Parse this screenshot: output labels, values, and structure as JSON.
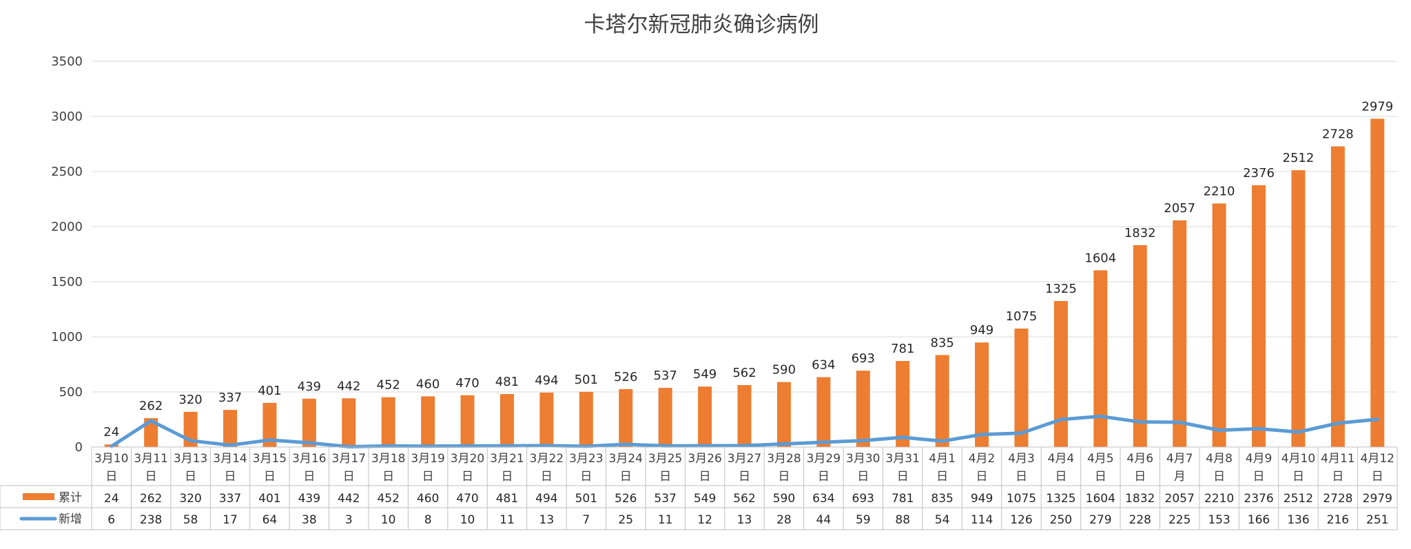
{
  "chart_data": {
    "type": "bar",
    "title": "卡塔尔新冠肺炎确诊病例",
    "categories": [
      [
        "3月10",
        "日"
      ],
      [
        "3月11",
        "日"
      ],
      [
        "3月13",
        "日"
      ],
      [
        "3月14",
        "日"
      ],
      [
        "3月15",
        "日"
      ],
      [
        "3月16",
        "日"
      ],
      [
        "3月17",
        "日"
      ],
      [
        "3月18",
        "日"
      ],
      [
        "3月19",
        "日"
      ],
      [
        "3月20",
        "日"
      ],
      [
        "3月21",
        "日"
      ],
      [
        "3月22",
        "日"
      ],
      [
        "3月23",
        "日"
      ],
      [
        "3月24",
        "日"
      ],
      [
        "3月25",
        "日"
      ],
      [
        "3月26",
        "日"
      ],
      [
        "3月27",
        "日"
      ],
      [
        "3月28",
        "日"
      ],
      [
        "3月29",
        "日"
      ],
      [
        "3月30",
        "日"
      ],
      [
        "3月31",
        "日"
      ],
      [
        "4月1",
        "日"
      ],
      [
        "4月2",
        "日"
      ],
      [
        "4月3",
        "日"
      ],
      [
        "4月4",
        "日"
      ],
      [
        "4月5",
        "日"
      ],
      [
        "4月6",
        "日"
      ],
      [
        "4月7",
        "月"
      ],
      [
        "4月8",
        "日"
      ],
      [
        "4月9",
        "日"
      ],
      [
        "4月10",
        "日"
      ],
      [
        "4月11",
        "日"
      ],
      [
        "4月12",
        "日"
      ]
    ],
    "series": [
      {
        "name": "累计",
        "type": "bar",
        "color": "#ed7d31",
        "values": [
          24,
          262,
          320,
          337,
          401,
          439,
          442,
          452,
          460,
          470,
          481,
          494,
          501,
          526,
          537,
          549,
          562,
          590,
          634,
          693,
          781,
          835,
          949,
          1075,
          1325,
          1604,
          1832,
          2057,
          2210,
          2376,
          2512,
          2728,
          2979
        ]
      },
      {
        "name": "新增",
        "type": "line",
        "color": "#5b9bd5",
        "values": [
          6,
          238,
          58,
          17,
          64,
          38,
          3,
          10,
          8,
          10,
          11,
          13,
          7,
          25,
          11,
          12,
          13,
          28,
          44,
          59,
          88,
          54,
          114,
          126,
          250,
          279,
          228,
          225,
          153,
          166,
          136,
          216,
          251
        ]
      }
    ],
    "ylim": [
      0,
      3500
    ],
    "yticks": [
      0,
      500,
      1000,
      1500,
      2000,
      2500,
      3000,
      3500
    ],
    "grid": true,
    "legend": "data-table"
  }
}
